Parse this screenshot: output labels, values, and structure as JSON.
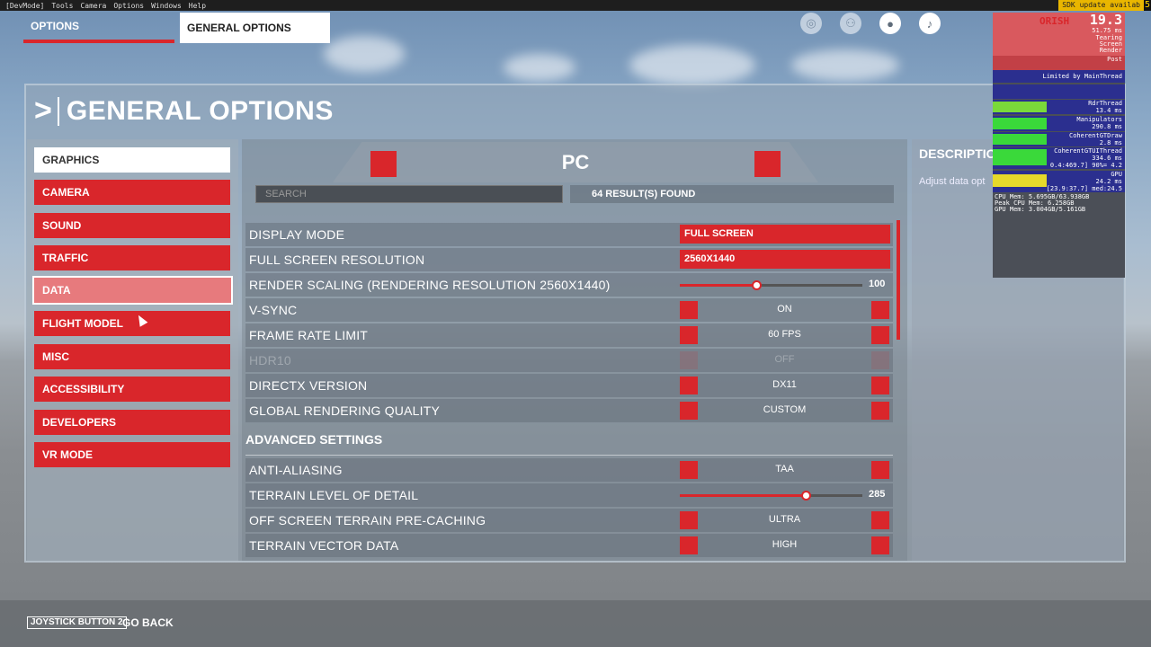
{
  "devbar": {
    "menus": [
      "[DevMode]",
      "Tools",
      "Camera",
      "Options",
      "Windows",
      "Help"
    ],
    "sdk_notice": "SDK update availab",
    "sdk_count": "5"
  },
  "top_tabs": {
    "options": "OPTIONS",
    "general": "GENERAL OPTIONS"
  },
  "top_icons": [
    "activity-icon",
    "friends-icon",
    "profile-icon",
    "notifications-icon"
  ],
  "page": {
    "title": "GENERAL OPTIONS"
  },
  "menu": {
    "items": [
      {
        "label": "GRAPHICS",
        "state": "active"
      },
      {
        "label": "CAMERA",
        "state": ""
      },
      {
        "label": "SOUND",
        "state": ""
      },
      {
        "label": "TRAFFIC",
        "state": ""
      },
      {
        "label": "DATA",
        "state": "hover"
      },
      {
        "label": "FLIGHT MODEL",
        "state": ""
      },
      {
        "label": "MISC",
        "state": ""
      },
      {
        "label": "ACCESSIBILITY",
        "state": ""
      },
      {
        "label": "DEVELOPERS",
        "state": ""
      },
      {
        "label": "VR MODE",
        "state": ""
      }
    ]
  },
  "center": {
    "platform": "PC",
    "search_placeholder": "SEARCH",
    "results": "64 RESULT(S) FOUND"
  },
  "settings": {
    "display_mode": {
      "label": "DISPLAY MODE",
      "value": "FULL SCREEN"
    },
    "fullscreen_resolution": {
      "label": "FULL SCREEN RESOLUTION",
      "value": "2560X1440"
    },
    "render_scaling": {
      "label": "RENDER SCALING (RENDERING RESOLUTION 2560X1440)",
      "value": "100",
      "fill_fraction": 0.42
    },
    "vsync": {
      "label": "V-SYNC",
      "value": "ON"
    },
    "frame_rate_limit": {
      "label": "FRAME RATE LIMIT",
      "value": "60 FPS"
    },
    "hdr10": {
      "label": "HDR10",
      "value": "OFF"
    },
    "directx": {
      "label": "DIRECTX VERSION",
      "value": "DX11"
    },
    "global_quality": {
      "label": "GLOBAL RENDERING QUALITY",
      "value": "CUSTOM"
    }
  },
  "advanced": {
    "heading": "ADVANCED SETTINGS",
    "anti_aliasing": {
      "label": "ANTI-ALIASING",
      "value": "TAA"
    },
    "terrain_lod": {
      "label": "TERRAIN LEVEL OF DETAIL",
      "value": "285",
      "fill_fraction": 0.69
    },
    "offscreen_caching": {
      "label": "OFF SCREEN TERRAIN PRE-CACHING",
      "value": "ULTRA"
    },
    "terrain_vector": {
      "label": "TERRAIN VECTOR DATA",
      "value": "HIGH"
    }
  },
  "description": {
    "title": "DESCRIPTIO",
    "text": "Adjust data opt"
  },
  "perf": {
    "header": "ORISH",
    "fps": "19.3",
    "ms": "51.75 ms",
    "lines_a": [
      "Tearing",
      "Screen",
      "Render",
      "Post"
    ],
    "limited": "Limited by MainThread",
    "rdr_label": "RdrThread",
    "rdr_val": "13.4 ms",
    "manip_label": "Manipulators",
    "manip_val": "290.8 ms",
    "cgt_label": "CoherentGTDraw",
    "cgt_val": "2.8 ms",
    "cgui_label": "CoherentGTUIThread",
    "cgui_val": "334.6 ms",
    "cgui_sub": "0.4:469.7] 90%= 4.2",
    "gpu_label": "GPU",
    "gpu_val": "24.2 ms",
    "gpu_sub": "[23.9:37.7] med:24.5",
    "mem": [
      "CPU Mem: 5.695GB/63.938GB",
      "Peak CPU Mem: 6.258GB",
      "GPU Mem: 3.004GB/5.161GB"
    ]
  },
  "footer": {
    "button": "JOYSTICK BUTTON 2",
    "action": "GO BACK"
  }
}
